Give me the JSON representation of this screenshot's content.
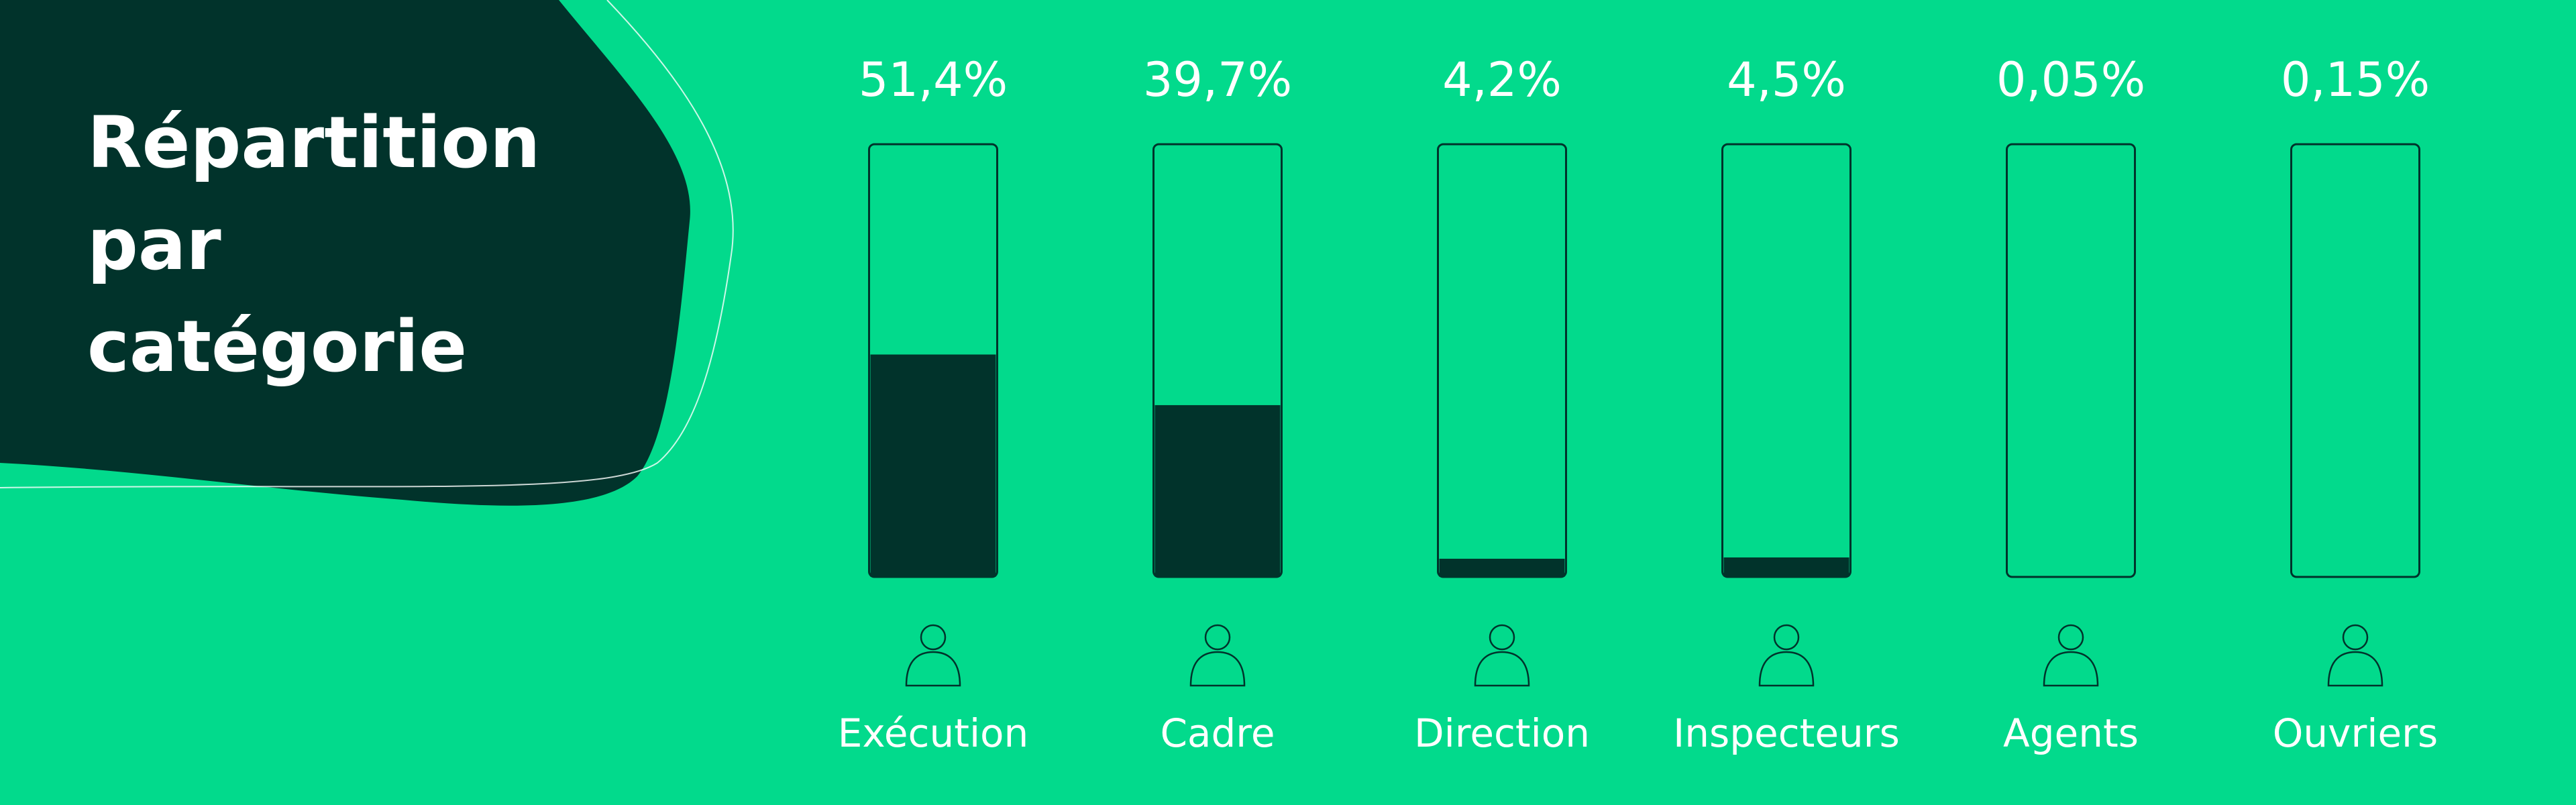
{
  "chart_data": {
    "type": "bar",
    "title": "Répartition par catégorie",
    "categories": [
      "Exécution",
      "Cadre",
      "Direction",
      "Inspecteurs",
      "Agents",
      "Ouvriers"
    ],
    "values": [
      51.4,
      39.7,
      4.2,
      4.5,
      0.05,
      0.15
    ],
    "value_labels": [
      "51,4%",
      "39,7%",
      "4,2%",
      "4,5%",
      "0,05%",
      "0,15%"
    ],
    "color": "#01332b",
    "ylim": [
      0,
      100
    ]
  }
}
